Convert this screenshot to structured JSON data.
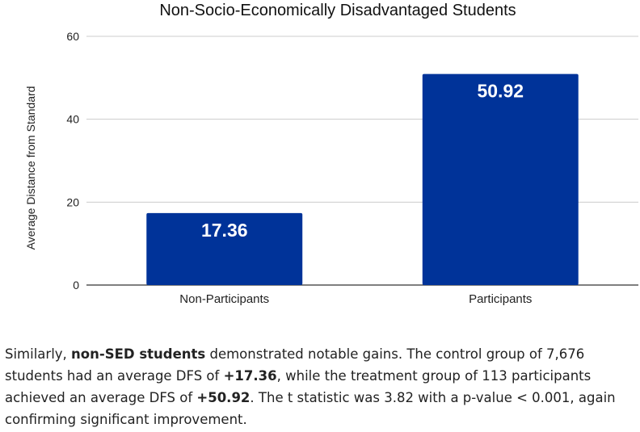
{
  "chart_data": {
    "type": "bar",
    "title": "Non-Socio-Economically Disadvantaged Students",
    "xlabel": "",
    "ylabel": "Average Distance from Standard",
    "categories": [
      "Non-Participants",
      "Participants"
    ],
    "values": [
      17.36,
      50.92
    ],
    "data_labels": [
      "17.36",
      "50.92"
    ],
    "ylim": [
      0,
      60
    ],
    "yticks": [
      0,
      20,
      40,
      60
    ],
    "grid": true,
    "bar_color": "#003399"
  },
  "caption": {
    "p1": "Similarly, ",
    "b1": "non-SED students",
    "p2": " demonstrated notable gains. The control group of 7,676 students had an average DFS of ",
    "b2": "+17.36",
    "p3": ", while the treatment group of 113 participants achieved an average DFS of ",
    "b3": "+50.92",
    "p4": ". The t statistic was 3.82 with a p-value < 0.001, again confirming significant improvement."
  }
}
